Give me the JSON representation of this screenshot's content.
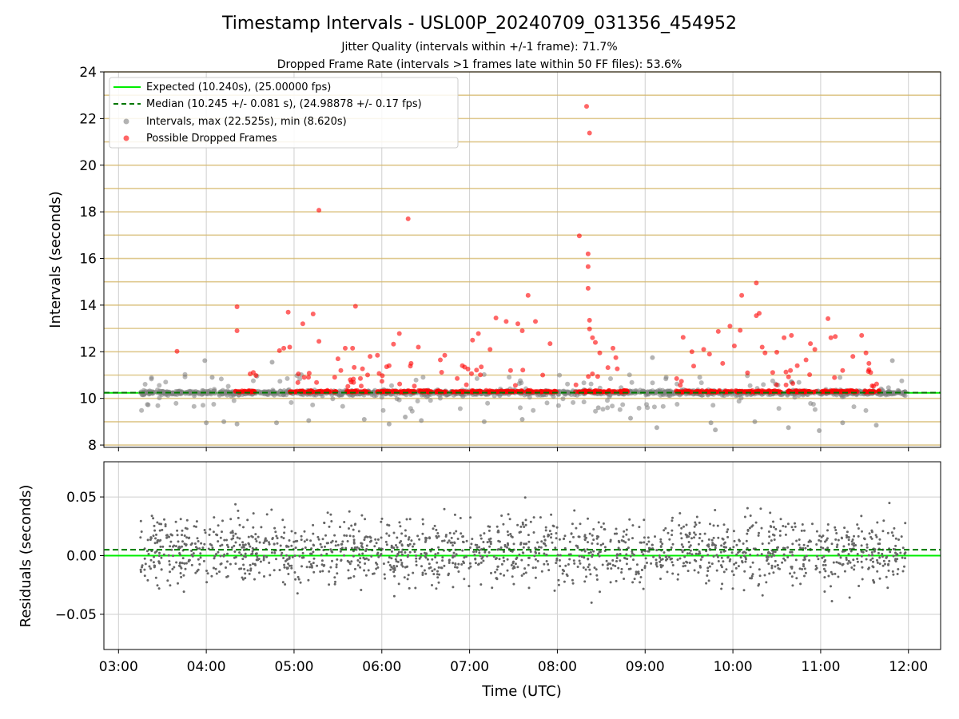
{
  "chart_data": [
    {
      "type": "scatter",
      "title": "Timestamp Intervals - USL00P_20240709_031356_454952",
      "subtitle_lines": [
        "Jitter Quality (intervals within +/-1 frame): 71.7%",
        "Dropped Frame Rate (intervals >1 frames late within 50 FF files): 53.6%"
      ],
      "xlabel": "",
      "ylabel": "Intervals (seconds)",
      "xlim": [
        "02:50",
        "12:22"
      ],
      "ylim": [
        7.9,
        24
      ],
      "yticks": [
        8,
        10,
        12,
        14,
        16,
        18,
        20,
        22,
        24
      ],
      "xticks": [
        "03:00",
        "04:00",
        "05:00",
        "06:00",
        "07:00",
        "08:00",
        "09:00",
        "10:00",
        "11:00",
        "12:00"
      ],
      "grid": "vertical lines and horizontal frame bands",
      "legend_position": "top-left",
      "legend": [
        "Expected (10.240s), (25.00000 fps)",
        "Median (10.245 +/- 0.081 s), (24.98878 +/- 0.17 fps)",
        "Intervals, max (22.525s), min (8.620s)",
        "Possible Dropped Frames"
      ],
      "expected_interval": 10.24,
      "median_interval": 10.245,
      "x_range": [
        "03:15",
        "11:58"
      ],
      "dropped_outliers": [
        {
          "x": "03:40",
          "y": 12.02
        },
        {
          "x": "04:21",
          "y": 13.93
        },
        {
          "x": "04:21",
          "y": 12.9
        },
        {
          "x": "04:30",
          "y": 11.05
        },
        {
          "x": "04:50",
          "y": 12.05
        },
        {
          "x": "04:53",
          "y": 12.15
        },
        {
          "x": "04:56",
          "y": 13.7
        },
        {
          "x": "04:57",
          "y": 12.2
        },
        {
          "x": "05:03",
          "y": 11.05
        },
        {
          "x": "05:06",
          "y": 13.2
        },
        {
          "x": "05:13",
          "y": 13.62
        },
        {
          "x": "05:17",
          "y": 18.07
        },
        {
          "x": "05:17",
          "y": 12.45
        },
        {
          "x": "05:30",
          "y": 11.7
        },
        {
          "x": "05:32",
          "y": 11.2
        },
        {
          "x": "05:35",
          "y": 12.15
        },
        {
          "x": "05:40",
          "y": 12.15
        },
        {
          "x": "05:42",
          "y": 13.95
        },
        {
          "x": "05:52",
          "y": 11.8
        },
        {
          "x": "05:57",
          "y": 11.85
        },
        {
          "x": "06:05",
          "y": 11.4
        },
        {
          "x": "06:08",
          "y": 12.33
        },
        {
          "x": "06:12",
          "y": 12.78
        },
        {
          "x": "06:18",
          "y": 17.7
        },
        {
          "x": "06:20",
          "y": 11.5
        },
        {
          "x": "06:25",
          "y": 12.2
        },
        {
          "x": "06:40",
          "y": 11.65
        },
        {
          "x": "06:43",
          "y": 11.85
        },
        {
          "x": "06:55",
          "y": 11.4
        },
        {
          "x": "07:02",
          "y": 12.5
        },
        {
          "x": "07:06",
          "y": 12.78
        },
        {
          "x": "07:08",
          "y": 11.35
        },
        {
          "x": "07:14",
          "y": 12.1
        },
        {
          "x": "07:18",
          "y": 13.45
        },
        {
          "x": "07:25",
          "y": 13.3
        },
        {
          "x": "07:28",
          "y": 11.2
        },
        {
          "x": "07:33",
          "y": 13.2
        },
        {
          "x": "07:36",
          "y": 12.9
        },
        {
          "x": "07:40",
          "y": 14.42
        },
        {
          "x": "07:45",
          "y": 13.3
        },
        {
          "x": "07:50",
          "y": 11.0
        },
        {
          "x": "07:55",
          "y": 12.35
        },
        {
          "x": "08:15",
          "y": 16.97
        },
        {
          "x": "08:20",
          "y": 22.525
        },
        {
          "x": "08:22",
          "y": 21.38
        },
        {
          "x": "08:21",
          "y": 16.2
        },
        {
          "x": "08:21",
          "y": 15.65
        },
        {
          "x": "08:21",
          "y": 14.72
        },
        {
          "x": "08:22",
          "y": 13.35
        },
        {
          "x": "08:22",
          "y": 12.98
        },
        {
          "x": "08:24",
          "y": 12.6
        },
        {
          "x": "08:26",
          "y": 12.4
        },
        {
          "x": "08:29",
          "y": 11.95
        },
        {
          "x": "08:38",
          "y": 12.15
        },
        {
          "x": "08:40",
          "y": 11.75
        },
        {
          "x": "09:26",
          "y": 12.62
        },
        {
          "x": "09:32",
          "y": 12.0
        },
        {
          "x": "09:40",
          "y": 12.1
        },
        {
          "x": "09:44",
          "y": 11.9
        },
        {
          "x": "09:50",
          "y": 12.87
        },
        {
          "x": "09:53",
          "y": 11.5
        },
        {
          "x": "09:58",
          "y": 13.1
        },
        {
          "x": "10:01",
          "y": 12.25
        },
        {
          "x": "10:05",
          "y": 12.92
        },
        {
          "x": "10:06",
          "y": 14.42
        },
        {
          "x": "10:10",
          "y": 11.1
        },
        {
          "x": "10:16",
          "y": 14.95
        },
        {
          "x": "10:16",
          "y": 13.55
        },
        {
          "x": "10:18",
          "y": 13.65
        },
        {
          "x": "10:20",
          "y": 12.2
        },
        {
          "x": "10:22",
          "y": 11.95
        },
        {
          "x": "10:30",
          "y": 11.98
        },
        {
          "x": "10:35",
          "y": 12.6
        },
        {
          "x": "10:40",
          "y": 12.7
        },
        {
          "x": "10:44",
          "y": 11.4
        },
        {
          "x": "10:50",
          "y": 11.65
        },
        {
          "x": "10:53",
          "y": 12.35
        },
        {
          "x": "10:56",
          "y": 12.1
        },
        {
          "x": "11:05",
          "y": 13.42
        },
        {
          "x": "11:07",
          "y": 12.6
        },
        {
          "x": "11:10",
          "y": 12.65
        },
        {
          "x": "11:15",
          "y": 11.2
        },
        {
          "x": "11:22",
          "y": 11.8
        },
        {
          "x": "11:28",
          "y": 12.7
        },
        {
          "x": "11:31",
          "y": 11.95
        },
        {
          "x": "11:33",
          "y": 11.5
        }
      ],
      "gray_outliers": [
        {
          "x": "03:59",
          "y": 11.62
        },
        {
          "x": "04:00",
          "y": 8.95
        },
        {
          "x": "04:04",
          "y": 10.9
        },
        {
          "x": "04:12",
          "y": 9.0
        },
        {
          "x": "04:21",
          "y": 8.9
        },
        {
          "x": "04:45",
          "y": 11.55
        },
        {
          "x": "04:48",
          "y": 8.95
        },
        {
          "x": "05:10",
          "y": 9.05
        },
        {
          "x": "05:48",
          "y": 9.1
        },
        {
          "x": "06:05",
          "y": 8.9
        },
        {
          "x": "06:16",
          "y": 9.2
        },
        {
          "x": "06:27",
          "y": 9.05
        },
        {
          "x": "07:10",
          "y": 9.0
        },
        {
          "x": "07:36",
          "y": 9.1
        },
        {
          "x": "08:28",
          "y": 9.6
        },
        {
          "x": "08:50",
          "y": 9.15
        },
        {
          "x": "09:05",
          "y": 11.75
        },
        {
          "x": "09:08",
          "y": 8.75
        },
        {
          "x": "09:45",
          "y": 8.95
        },
        {
          "x": "09:48",
          "y": 8.65
        },
        {
          "x": "10:15",
          "y": 9.0
        },
        {
          "x": "10:38",
          "y": 8.75
        },
        {
          "x": "10:59",
          "y": 8.62
        },
        {
          "x": "11:15",
          "y": 8.95
        },
        {
          "x": "11:38",
          "y": 8.85
        },
        {
          "x": "11:49",
          "y": 11.62
        }
      ]
    },
    {
      "type": "scatter",
      "title": "",
      "xlabel": "Time (UTC)",
      "ylabel": "Residuals (seconds)",
      "xlim": [
        "02:50",
        "12:22"
      ],
      "ylim": [
        -0.08,
        0.08
      ],
      "yticks": [
        -0.05,
        0.0,
        0.05
      ],
      "ytick_labels": [
        "−0.05",
        "0.00",
        "0.05"
      ],
      "xticks": [
        "03:00",
        "04:00",
        "05:00",
        "06:00",
        "07:00",
        "08:00",
        "09:00",
        "10:00",
        "11:00",
        "12:00"
      ],
      "grid": true,
      "expected_residual": 0.0,
      "median_residual": 0.005,
      "x_range": [
        "03:15",
        "11:58"
      ],
      "residual_spread": 0.08
    }
  ],
  "colors": {
    "expected": "#00ee00",
    "median": "#007700",
    "intervals": "#7f7f7f",
    "dropped": "#ff0000",
    "bands": "#d4b76a",
    "grid": "#cfcfcf"
  }
}
